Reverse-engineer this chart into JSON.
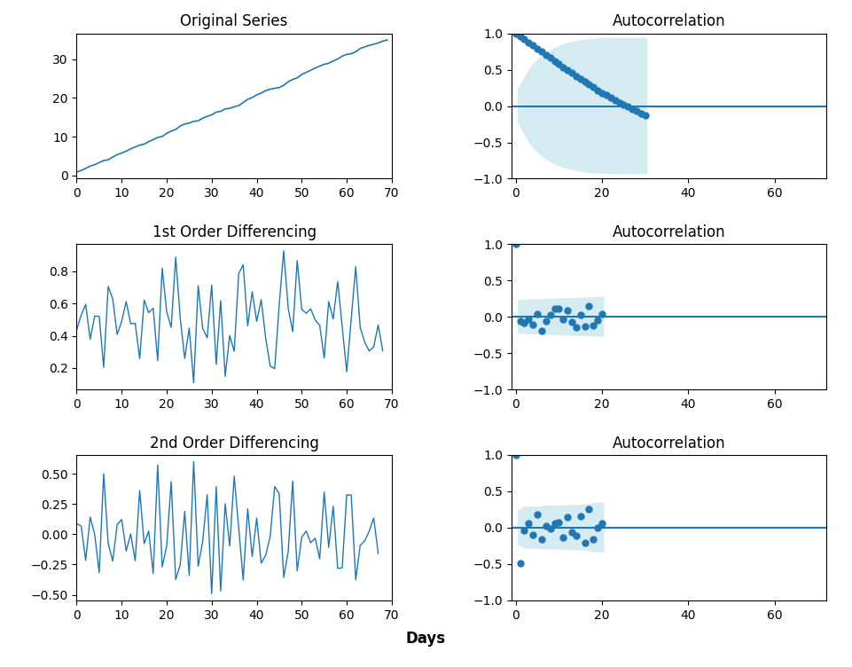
{
  "title_original": "Original Series",
  "title_diff1": "1st Order Differencing",
  "title_diff2": "2nd Order Differencing",
  "title_acf": "Autocorrelation",
  "xlabel": "Days",
  "line_color": "#1f77b4",
  "acf_color": "#1f77b4",
  "conf_color": "#add8e6",
  "conf_alpha": 0.5,
  "figsize": [
    9.61,
    7.52
  ],
  "dpi": 100,
  "n_lags_orig": 30,
  "n_lags_diff": 20,
  "seed": 7
}
